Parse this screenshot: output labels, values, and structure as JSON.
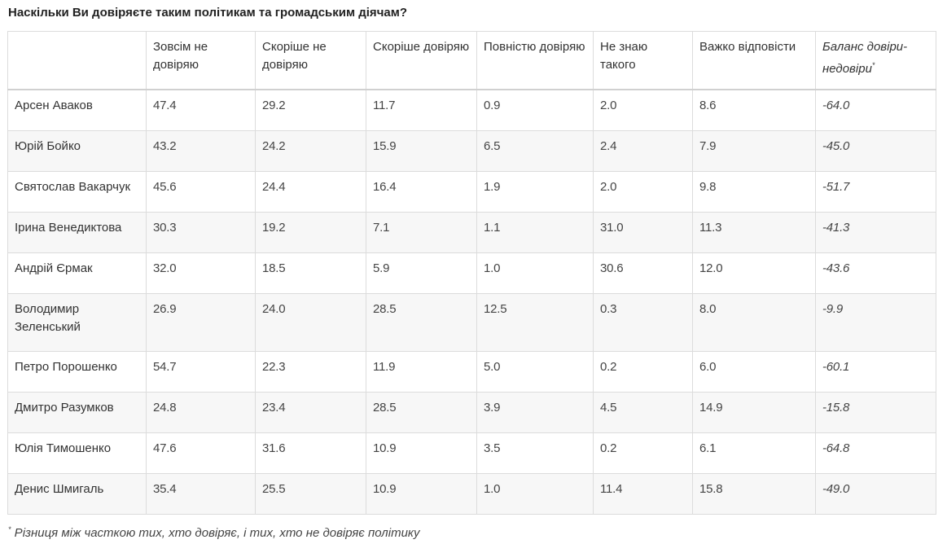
{
  "title": "Наскільки Ви довіряєте таким політикам та громадським діячам?",
  "columns": [
    "",
    "Зовсім не довіряю",
    "Скоріше не довіряю",
    "Скоріше довіряю",
    "Повністю довіряю",
    "Не знаю такого",
    "Важко відповісти",
    "Баланс довіри-недовіри"
  ],
  "balance_marker": "*",
  "rows": [
    {
      "name": "Арсен Аваков",
      "values": [
        "47.4",
        "29.2",
        "11.7",
        "0.9",
        "2.0",
        "8.6",
        "-64.0"
      ]
    },
    {
      "name": "Юрій Бойко",
      "values": [
        "43.2",
        "24.2",
        "15.9",
        "6.5",
        "2.4",
        "7.9",
        "-45.0"
      ]
    },
    {
      "name": "Святослав Вакарчук",
      "values": [
        "45.6",
        "24.4",
        "16.4",
        "1.9",
        "2.0",
        "9.8",
        "-51.7"
      ]
    },
    {
      "name": "Ірина Венедиктова",
      "values": [
        "30.3",
        "19.2",
        "7.1",
        "1.1",
        "31.0",
        "11.3",
        "-41.3"
      ]
    },
    {
      "name": "Андрій Єрмак",
      "values": [
        "32.0",
        "18.5",
        "5.9",
        "1.0",
        "30.6",
        "12.0",
        "-43.6"
      ]
    },
    {
      "name": "Володимир Зеленський",
      "values": [
        "26.9",
        "24.0",
        "28.5",
        "12.5",
        "0.3",
        "8.0",
        "-9.9"
      ]
    },
    {
      "name": "Петро Порошенко",
      "values": [
        "54.7",
        "22.3",
        "11.9",
        "5.0",
        "0.2",
        "6.0",
        "-60.1"
      ]
    },
    {
      "name": "Дмитро Разумков",
      "values": [
        "24.8",
        "23.4",
        "28.5",
        "3.9",
        "4.5",
        "14.9",
        "-15.8"
      ]
    },
    {
      "name": "Юлія Тимошенко",
      "values": [
        "47.6",
        "31.6",
        "10.9",
        "3.5",
        "0.2",
        "6.1",
        "-64.8"
      ]
    },
    {
      "name": "Денис Шмигаль",
      "values": [
        "35.4",
        "25.5",
        "10.9",
        "1.0",
        "11.4",
        "15.8",
        "-49.0"
      ]
    }
  ],
  "footnote": {
    "marker": "*",
    "text": " Різниця між часткою тих, хто довіряє, і тих, хто не довіряє політику"
  }
}
